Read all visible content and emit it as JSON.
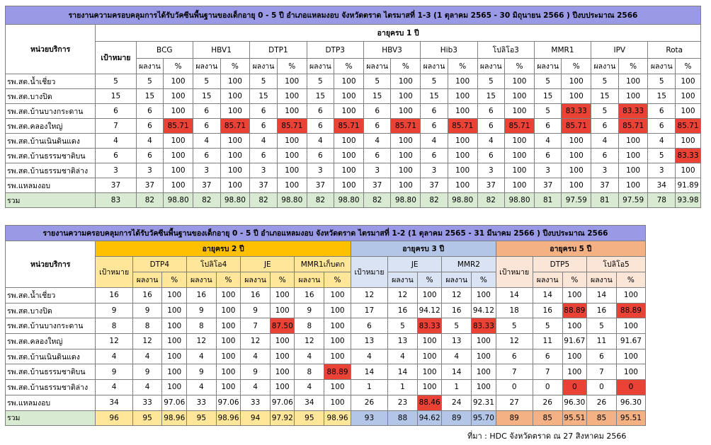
{
  "table1": {
    "title": "รายงานความครอบคลุมการได้รับวัคซีนพื้นฐานของเด็กอายุ 0 - 5 ปี อำเภอแหลมงอบ จังหวัดตราด ไตรมาสที่ 1-3 (1 ตุลาคม 2565 - 30 มิถุนายน 2566 ) ปีงบประมาณ 2566",
    "unit_header": "หน่วยบริการ",
    "age_group": "อายุครบ 1 ปี",
    "target_header": "เป้าหมาย",
    "result_label": "ผลงาน",
    "pct_label": "%",
    "vaccines": [
      "BCG",
      "HBV1",
      "DTP1",
      "DTP3",
      "HBV3",
      "Hib3",
      "โปลิโอ3",
      "MMR1",
      "IPV",
      "Rota"
    ],
    "rows": [
      {
        "name": "รพ.สต.น้ำเชี่ยว",
        "target": "5",
        "cells": [
          [
            "5",
            "100"
          ],
          [
            "5",
            "100"
          ],
          [
            "5",
            "100"
          ],
          [
            "5",
            "100"
          ],
          [
            "5",
            "100"
          ],
          [
            "5",
            "100"
          ],
          [
            "5",
            "100"
          ],
          [
            "5",
            "100"
          ],
          [
            "5",
            "100"
          ],
          [
            "5",
            "100"
          ]
        ]
      },
      {
        "name": "รพ.สต.บางปิด",
        "target": "15",
        "cells": [
          [
            "15",
            "100"
          ],
          [
            "15",
            "100"
          ],
          [
            "15",
            "100"
          ],
          [
            "15",
            "100"
          ],
          [
            "15",
            "100"
          ],
          [
            "15",
            "100"
          ],
          [
            "15",
            "100"
          ],
          [
            "15",
            "100"
          ],
          [
            "15",
            "100"
          ],
          [
            "15",
            "100"
          ]
        ]
      },
      {
        "name": "รพ.สต.บ้านบางกระดาน",
        "target": "6",
        "cells": [
          [
            "6",
            "100"
          ],
          [
            "6",
            "100"
          ],
          [
            "6",
            "100"
          ],
          [
            "6",
            "100"
          ],
          [
            "6",
            "100"
          ],
          [
            "6",
            "100"
          ],
          [
            "6",
            "100"
          ],
          [
            "5",
            "83.33"
          ],
          [
            "5",
            "83.33"
          ],
          [
            "6",
            "100"
          ]
        ]
      },
      {
        "name": "รพ.สต.คลองใหญ่",
        "target": "7",
        "cells": [
          [
            "6",
            "85.71"
          ],
          [
            "6",
            "85.71"
          ],
          [
            "6",
            "85.71"
          ],
          [
            "6",
            "85.71"
          ],
          [
            "6",
            "85.71"
          ],
          [
            "6",
            "85.71"
          ],
          [
            "6",
            "85.71"
          ],
          [
            "6",
            "85.71"
          ],
          [
            "6",
            "85.71"
          ],
          [
            "6",
            "85.71"
          ]
        ]
      },
      {
        "name": "รพ.สต.บ้านเนินดินแดง",
        "target": "4",
        "cells": [
          [
            "4",
            "100"
          ],
          [
            "4",
            "100"
          ],
          [
            "4",
            "100"
          ],
          [
            "4",
            "100"
          ],
          [
            "4",
            "100"
          ],
          [
            "4",
            "100"
          ],
          [
            "4",
            "100"
          ],
          [
            "4",
            "100"
          ],
          [
            "4",
            "100"
          ],
          [
            "4",
            "100"
          ]
        ]
      },
      {
        "name": "รพ.สต.บ้านธรรมชาติบน",
        "target": "6",
        "cells": [
          [
            "6",
            "100"
          ],
          [
            "6",
            "100"
          ],
          [
            "6",
            "100"
          ],
          [
            "6",
            "100"
          ],
          [
            "6",
            "100"
          ],
          [
            "6",
            "100"
          ],
          [
            "6",
            "100"
          ],
          [
            "6",
            "100"
          ],
          [
            "6",
            "100"
          ],
          [
            "5",
            "83.33"
          ]
        ]
      },
      {
        "name": "รพ.สต.บ้านธรรมชาติล่าง",
        "target": "3",
        "cells": [
          [
            "3",
            "100"
          ],
          [
            "3",
            "100"
          ],
          [
            "3",
            "100"
          ],
          [
            "3",
            "100"
          ],
          [
            "3",
            "100"
          ],
          [
            "3",
            "100"
          ],
          [
            "3",
            "100"
          ],
          [
            "3",
            "100"
          ],
          [
            "3",
            "100"
          ],
          [
            "3",
            "100"
          ]
        ]
      },
      {
        "name": "รพ.แหลมงอบ",
        "target": "37",
        "cells": [
          [
            "37",
            "100"
          ],
          [
            "37",
            "100"
          ],
          [
            "37",
            "100"
          ],
          [
            "37",
            "100"
          ],
          [
            "37",
            "100"
          ],
          [
            "37",
            "100"
          ],
          [
            "37",
            "100"
          ],
          [
            "37",
            "100"
          ],
          [
            "37",
            "100"
          ],
          [
            "34",
            "91.89"
          ]
        ]
      }
    ],
    "total": {
      "name": "รวม",
      "target": "83",
      "cells": [
        [
          "82",
          "98.80"
        ],
        [
          "82",
          "98.80"
        ],
        [
          "82",
          "98.80"
        ],
        [
          "82",
          "98.80"
        ],
        [
          "82",
          "98.80"
        ],
        [
          "82",
          "98.80"
        ],
        [
          "82",
          "98.80"
        ],
        [
          "81",
          "97.59"
        ],
        [
          "81",
          "97.59"
        ],
        [
          "78",
          "93.98"
        ]
      ]
    }
  },
  "table2": {
    "title": "รายงานความครอบคลุมการได้รับวัคซีนพื้นฐานของเด็กอายุ 0 - 5 ปี อำเภอแหลมงอบ จังหวัดตราด ไตรมาสที่ 1-2 (1 ตุลาคม 2565 - 31 มีนาคม 2566 ) ปีงบประมาณ 2566",
    "unit_header": "หน่วยบริการ",
    "target_header": "เป้าหมาย",
    "result_label": "ผลงาน",
    "pct_label": "%",
    "groups": [
      {
        "label": "อายุครบ 2 ปี",
        "vaccines": [
          "DTP4",
          "โปลิโอ4",
          "JE",
          "MMR1เก็บตก"
        ]
      },
      {
        "label": "อายุครบ 3 ปี",
        "vaccines": [
          "JE",
          "MMR2"
        ]
      },
      {
        "label": "อายุครบ 5 ปี",
        "vaccines": [
          "DTP5",
          "โปลิโอ5"
        ]
      }
    ],
    "rows": [
      {
        "name": "รพ.สต.น้ำเชี่ยว",
        "g": [
          {
            "target": "16",
            "cells": [
              [
                "16",
                "100"
              ],
              [
                "16",
                "100"
              ],
              [
                "16",
                "100"
              ],
              [
                "16",
                "100"
              ]
            ]
          },
          {
            "target": "12",
            "cells": [
              [
                "12",
                "100"
              ],
              [
                "12",
                "100"
              ]
            ]
          },
          {
            "target": "14",
            "cells": [
              [
                "14",
                "100"
              ],
              [
                "14",
                "100"
              ]
            ]
          }
        ]
      },
      {
        "name": "รพ.สต.บางปิด",
        "g": [
          {
            "target": "9",
            "cells": [
              [
                "9",
                "100"
              ],
              [
                "9",
                "100"
              ],
              [
                "9",
                "100"
              ],
              [
                "9",
                "100"
              ]
            ]
          },
          {
            "target": "17",
            "cells": [
              [
                "16",
                "94.12"
              ],
              [
                "16",
                "94.12"
              ]
            ]
          },
          {
            "target": "18",
            "cells": [
              [
                "16",
                "88.89"
              ],
              [
                "16",
                "88.89"
              ]
            ]
          }
        ]
      },
      {
        "name": "รพ.สต.บ้านบางกระดาน",
        "g": [
          {
            "target": "8",
            "cells": [
              [
                "8",
                "100"
              ],
              [
                "8",
                "100"
              ],
              [
                "7",
                "87.50"
              ],
              [
                "8",
                "100"
              ]
            ]
          },
          {
            "target": "6",
            "cells": [
              [
                "5",
                "83.33"
              ],
              [
                "5",
                "83.33"
              ]
            ]
          },
          {
            "target": "5",
            "cells": [
              [
                "5",
                "100"
              ],
              [
                "5",
                "100"
              ]
            ]
          }
        ]
      },
      {
        "name": "รพ.สต.คลองใหญ่",
        "g": [
          {
            "target": "12",
            "cells": [
              [
                "12",
                "100"
              ],
              [
                "12",
                "100"
              ],
              [
                "12",
                "100"
              ],
              [
                "12",
                "100"
              ]
            ]
          },
          {
            "target": "13",
            "cells": [
              [
                "13",
                "100"
              ],
              [
                "13",
                "100"
              ]
            ]
          },
          {
            "target": "12",
            "cells": [
              [
                "11",
                "91.67"
              ],
              [
                "11",
                "91.67"
              ]
            ]
          }
        ]
      },
      {
        "name": "รพ.สต.บ้านเนินดินแดง",
        "g": [
          {
            "target": "4",
            "cells": [
              [
                "4",
                "100"
              ],
              [
                "4",
                "100"
              ],
              [
                "4",
                "100"
              ],
              [
                "4",
                "100"
              ]
            ]
          },
          {
            "target": "4",
            "cells": [
              [
                "4",
                "100"
              ],
              [
                "4",
                "100"
              ]
            ]
          },
          {
            "target": "6",
            "cells": [
              [
                "6",
                "100"
              ],
              [
                "6",
                "100"
              ]
            ]
          }
        ]
      },
      {
        "name": "รพ.สต.บ้านธรรมชาติบน",
        "g": [
          {
            "target": "9",
            "cells": [
              [
                "9",
                "100"
              ],
              [
                "9",
                "100"
              ],
              [
                "9",
                "100"
              ],
              [
                "8",
                "88.89"
              ]
            ]
          },
          {
            "target": "14",
            "cells": [
              [
                "14",
                "100"
              ],
              [
                "14",
                "100"
              ]
            ]
          },
          {
            "target": "7",
            "cells": [
              [
                "7",
                "100"
              ],
              [
                "7",
                "100"
              ]
            ]
          }
        ]
      },
      {
        "name": "รพ.สต.บ้านธรรมชาติล่าง",
        "g": [
          {
            "target": "4",
            "cells": [
              [
                "4",
                "100"
              ],
              [
                "4",
                "100"
              ],
              [
                "4",
                "100"
              ],
              [
                "4",
                "100"
              ]
            ]
          },
          {
            "target": "1",
            "cells": [
              [
                "1",
                "100"
              ],
              [
                "1",
                "100"
              ]
            ]
          },
          {
            "target": "0",
            "cells": [
              [
                "0",
                "0"
              ],
              [
                "0",
                "0"
              ]
            ]
          }
        ]
      },
      {
        "name": "รพ.แหลมงอบ",
        "g": [
          {
            "target": "34",
            "cells": [
              [
                "33",
                "97.06"
              ],
              [
                "33",
                "97.06"
              ],
              [
                "33",
                "97.06"
              ],
              [
                "34",
                "100"
              ]
            ]
          },
          {
            "target": "26",
            "cells": [
              [
                "23",
                "88.46"
              ],
              [
                "24",
                "92.31"
              ]
            ]
          },
          {
            "target": "27",
            "cells": [
              [
                "26",
                "96.30"
              ],
              [
                "26",
                "96.30"
              ]
            ]
          }
        ]
      }
    ],
    "total": {
      "name": "รวม",
      "g": [
        {
          "target": "96",
          "cells": [
            [
              "95",
              "98.96"
            ],
            [
              "95",
              "98.96"
            ],
            [
              "94",
              "97.92"
            ],
            [
              "95",
              "98.96"
            ]
          ]
        },
        {
          "target": "93",
          "cells": [
            [
              "88",
              "94.62"
            ],
            [
              "89",
              "95.70"
            ]
          ]
        },
        {
          "target": "89",
          "cells": [
            [
              "85",
              "95.51"
            ],
            [
              "85",
              "95.51"
            ]
          ]
        }
      ]
    }
  },
  "source": "ที่มา : HDC จังหวัดตราด ณ 27 สิงหาคม  2566",
  "colors": {
    "title": "#9999e6",
    "total_row": "#d9ead3",
    "age2": "#ffc000",
    "age3": "#b4c6e7",
    "age5": "#f4b183",
    "below_target": "#ea4335"
  }
}
